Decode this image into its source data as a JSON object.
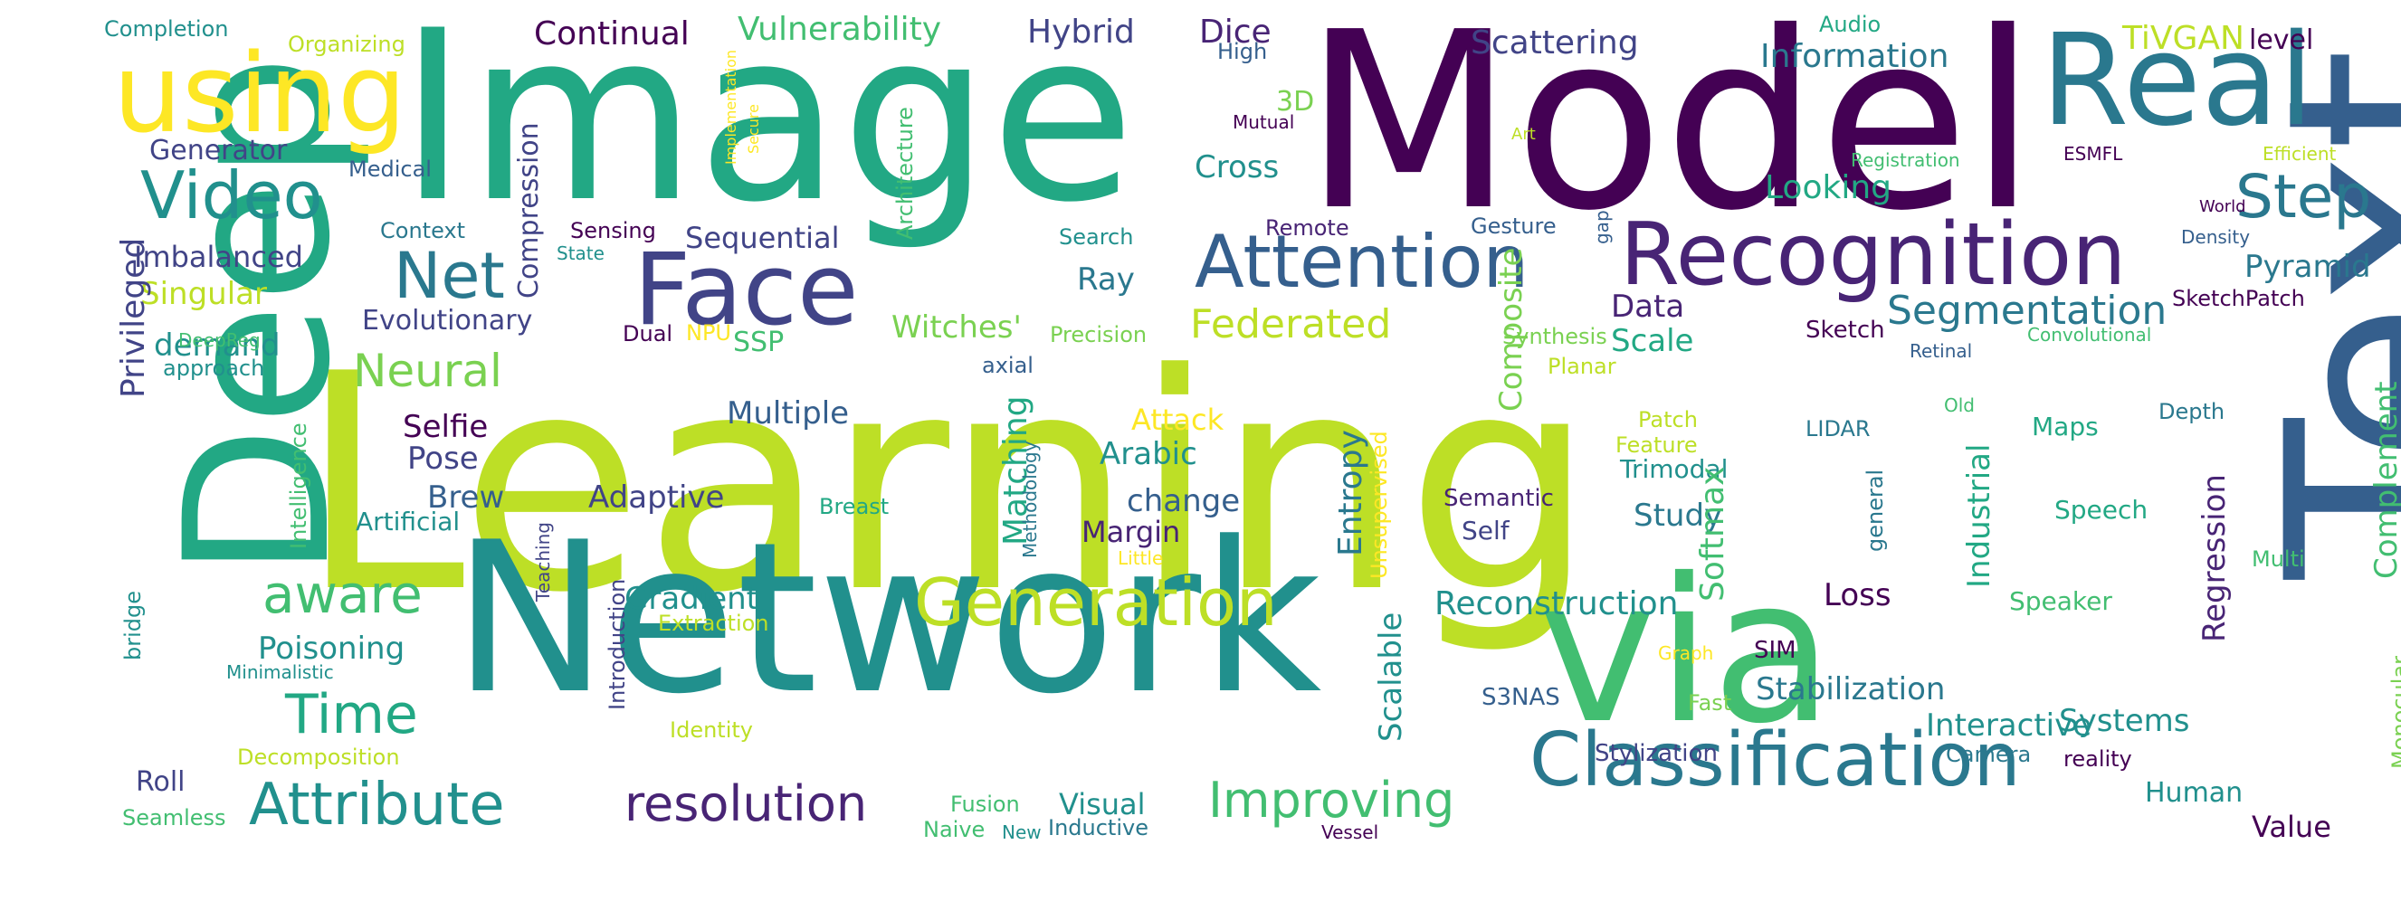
{
  "palette": {
    "background": "#ffffff",
    "viridis": [
      "#440154",
      "#482475",
      "#414487",
      "#355f8d",
      "#2a788e",
      "#21908d",
      "#22a884",
      "#42be71",
      "#7ad151",
      "#bddf26",
      "#fde725"
    ]
  },
  "words": [
    {
      "text": "Learning",
      "color": "#bddf26"
    },
    {
      "text": "Network",
      "color": "#21908d"
    },
    {
      "text": "Image",
      "color": "#22a884"
    },
    {
      "text": "Model",
      "color": "#440154"
    },
    {
      "text": "Text",
      "color": "#355f8d"
    },
    {
      "text": "Deep",
      "color": "#22a884"
    },
    {
      "text": "via",
      "color": "#42be71"
    },
    {
      "text": "Real",
      "color": "#2a788e"
    },
    {
      "text": "using",
      "color": "#fde725"
    },
    {
      "text": "Recognition",
      "color": "#482475"
    },
    {
      "text": "Face",
      "color": "#414487"
    },
    {
      "text": "Classification",
      "color": "#2a788e"
    },
    {
      "text": "Attention",
      "color": "#355f8d"
    },
    {
      "text": "Video",
      "color": "#21908d"
    },
    {
      "text": "Generation",
      "color": "#bddf26"
    },
    {
      "text": "Net",
      "color": "#2a788e"
    },
    {
      "text": "Step",
      "color": "#2a788e"
    },
    {
      "text": "Attribute",
      "color": "#21908d"
    },
    {
      "text": "resolution",
      "color": "#482475"
    },
    {
      "text": "aware",
      "color": "#42be71"
    },
    {
      "text": "Time",
      "color": "#22a884"
    },
    {
      "text": "Improving",
      "color": "#42be71"
    },
    {
      "text": "Segmentation",
      "color": "#2a788e"
    },
    {
      "text": "Neural",
      "color": "#7ad151"
    },
    {
      "text": "Federated",
      "color": "#bddf26"
    },
    {
      "text": "Reconstruction",
      "color": "#21908d"
    },
    {
      "text": "Scattering",
      "color": "#414487"
    },
    {
      "text": "Continual",
      "color": "#440154"
    },
    {
      "text": "Vulnerability",
      "color": "#42be71"
    },
    {
      "text": "Hybrid",
      "color": "#414487"
    },
    {
      "text": "Dice",
      "color": "#482475"
    },
    {
      "text": "Information",
      "color": "#2a788e"
    },
    {
      "text": "TiVGAN",
      "color": "#bddf26"
    },
    {
      "text": "level",
      "color": "#440154"
    },
    {
      "text": "Completion",
      "color": "#21908d"
    },
    {
      "text": "Organizing",
      "color": "#bddf26"
    },
    {
      "text": "Audio",
      "color": "#22a884"
    },
    {
      "text": "High",
      "color": "#355f8d"
    },
    {
      "text": "3D",
      "color": "#7ad151"
    },
    {
      "text": "Generator",
      "color": "#414487"
    },
    {
      "text": "Medical",
      "color": "#355f8d"
    },
    {
      "text": "Compression",
      "color": "#414487"
    },
    {
      "text": "Cross",
      "color": "#21908d"
    },
    {
      "text": "Mutual",
      "color": "#440154"
    },
    {
      "text": "Art",
      "color": "#bddf26"
    },
    {
      "text": "Registration",
      "color": "#42be71"
    },
    {
      "text": "ESMFL",
      "color": "#440154"
    },
    {
      "text": "Efficient",
      "color": "#bddf26"
    },
    {
      "text": "Looking",
      "color": "#22a884"
    },
    {
      "text": "World",
      "color": "#440154"
    },
    {
      "text": "Imbalanced",
      "color": "#414487"
    },
    {
      "text": "Context",
      "color": "#2a788e"
    },
    {
      "text": "Sensing",
      "color": "#440154"
    },
    {
      "text": "State",
      "color": "#21908d"
    },
    {
      "text": "Sequential",
      "color": "#414487"
    },
    {
      "text": "Search",
      "color": "#21908d"
    },
    {
      "text": "Remote",
      "color": "#482475"
    },
    {
      "text": "Gesture",
      "color": "#355f8d"
    },
    {
      "text": "Density",
      "color": "#355f8d"
    },
    {
      "text": "Pyramid",
      "color": "#2a788e"
    },
    {
      "text": "Singular",
      "color": "#bddf26"
    },
    {
      "text": "Ray",
      "color": "#2a788e"
    },
    {
      "text": "Data",
      "color": "#482475"
    },
    {
      "text": "SketchPatch",
      "color": "#440154"
    },
    {
      "text": "Privileged",
      "color": "#414487"
    },
    {
      "text": "Evolutionary",
      "color": "#414487"
    },
    {
      "text": "Witches'",
      "color": "#7ad151"
    },
    {
      "text": "Scale",
      "color": "#22a884"
    },
    {
      "text": "Sketch",
      "color": "#440154"
    },
    {
      "text": "demand",
      "color": "#21908d"
    },
    {
      "text": "DeepReg",
      "color": "#42be71"
    },
    {
      "text": "Dual",
      "color": "#440154"
    },
    {
      "text": "NPU",
      "color": "#fde725"
    },
    {
      "text": "SSP",
      "color": "#42be71"
    },
    {
      "text": "Precision",
      "color": "#7ad151"
    },
    {
      "text": "Synthesis",
      "color": "#7ad151"
    },
    {
      "text": "Convolutional",
      "color": "#42be71"
    },
    {
      "text": "approach",
      "color": "#21908d"
    },
    {
      "text": "axial",
      "color": "#355f8d"
    },
    {
      "text": "Planar",
      "color": "#bddf26"
    },
    {
      "text": "Retinal",
      "color": "#355f8d"
    },
    {
      "text": "Multiple",
      "color": "#355f8d"
    },
    {
      "text": "Old",
      "color": "#42be71"
    },
    {
      "text": "Depth",
      "color": "#2a788e"
    },
    {
      "text": "Attack",
      "color": "#fde725"
    },
    {
      "text": "Maps",
      "color": "#22a884"
    },
    {
      "text": "LIDAR",
      "color": "#2a788e"
    },
    {
      "text": "Patch",
      "color": "#bddf26"
    },
    {
      "text": "Selfie",
      "color": "#440154"
    },
    {
      "text": "Arabic",
      "color": "#21908d"
    },
    {
      "text": "Feature",
      "color": "#bddf26"
    },
    {
      "text": "Trimodal",
      "color": "#21908d"
    },
    {
      "text": "Pose",
      "color": "#414487"
    },
    {
      "text": "Brew",
      "color": "#355f8d"
    },
    {
      "text": "Adaptive",
      "color": "#414487"
    },
    {
      "text": "change",
      "color": "#355f8d"
    },
    {
      "text": "Breast",
      "color": "#22a884"
    },
    {
      "text": "Semantic",
      "color": "#482475"
    },
    {
      "text": "Study",
      "color": "#2a788e"
    },
    {
      "text": "Speech",
      "color": "#22a884"
    },
    {
      "text": "Artificial",
      "color": "#21908d"
    },
    {
      "text": "Margin",
      "color": "#482475"
    },
    {
      "text": "Self",
      "color": "#414487"
    },
    {
      "text": "Little",
      "color": "#fde725"
    },
    {
      "text": "Multi",
      "color": "#42be71"
    },
    {
      "text": "Gradient",
      "color": "#21908d"
    },
    {
      "text": "Loss",
      "color": "#440154"
    },
    {
      "text": "Speaker",
      "color": "#42be71"
    },
    {
      "text": "Extraction",
      "color": "#bddf26"
    },
    {
      "text": "Poisoning",
      "color": "#21908d"
    },
    {
      "text": "Minimalistic",
      "color": "#21908d"
    },
    {
      "text": "Graph",
      "color": "#fde725"
    },
    {
      "text": "SIM",
      "color": "#440154"
    },
    {
      "text": "Stabilization",
      "color": "#2a788e"
    },
    {
      "text": "Interactive",
      "color": "#21908d"
    },
    {
      "text": "Systems",
      "color": "#21908d"
    },
    {
      "text": "S3NAS",
      "color": "#355f8d"
    },
    {
      "text": "Fast",
      "color": "#7ad151"
    },
    {
      "text": "Identity",
      "color": "#bddf26"
    },
    {
      "text": "Decomposition",
      "color": "#bddf26"
    },
    {
      "text": "Stylization",
      "color": "#414487"
    },
    {
      "text": "Camera",
      "color": "#2a788e"
    },
    {
      "text": "reality",
      "color": "#440154"
    },
    {
      "text": "Roll",
      "color": "#414487"
    },
    {
      "text": "Seamless",
      "color": "#42be71"
    },
    {
      "text": "Fusion",
      "color": "#42be71"
    },
    {
      "text": "Visual",
      "color": "#21908d"
    },
    {
      "text": "Naive",
      "color": "#42be71"
    },
    {
      "text": "New",
      "color": "#21908d"
    },
    {
      "text": "Inductive",
      "color": "#2a788e"
    },
    {
      "text": "Vessel",
      "color": "#440154"
    },
    {
      "text": "Human",
      "color": "#21908d"
    },
    {
      "text": "Value",
      "color": "#440154"
    },
    {
      "text": "Implementation",
      "color": "#fde725"
    },
    {
      "text": "Secure",
      "color": "#fde725"
    },
    {
      "text": "Architecture",
      "color": "#42be71"
    },
    {
      "text": "Composite",
      "color": "#7ad151"
    },
    {
      "text": "gap",
      "color": "#355f8d"
    },
    {
      "text": "Intelligence",
      "color": "#42be71"
    },
    {
      "text": "Matching",
      "color": "#22a884"
    },
    {
      "text": "Methodology",
      "color": "#2a788e"
    },
    {
      "text": "Entropy",
      "color": "#2a788e"
    },
    {
      "text": "Unsupervised",
      "color": "#fde725"
    },
    {
      "text": "Softmax",
      "color": "#42be71"
    },
    {
      "text": "Industrial",
      "color": "#22a884"
    },
    {
      "text": "general",
      "color": "#2a788e"
    },
    {
      "text": "Regression",
      "color": "#482475"
    },
    {
      "text": "Complement",
      "color": "#42be71"
    },
    {
      "text": "Monocular",
      "color": "#7ad151"
    },
    {
      "text": "Teaching",
      "color": "#414487"
    },
    {
      "text": "Introduction",
      "color": "#414487"
    },
    {
      "text": "Scalable",
      "color": "#21908d"
    },
    {
      "text": "bridge",
      "color": "#21908d"
    }
  ]
}
